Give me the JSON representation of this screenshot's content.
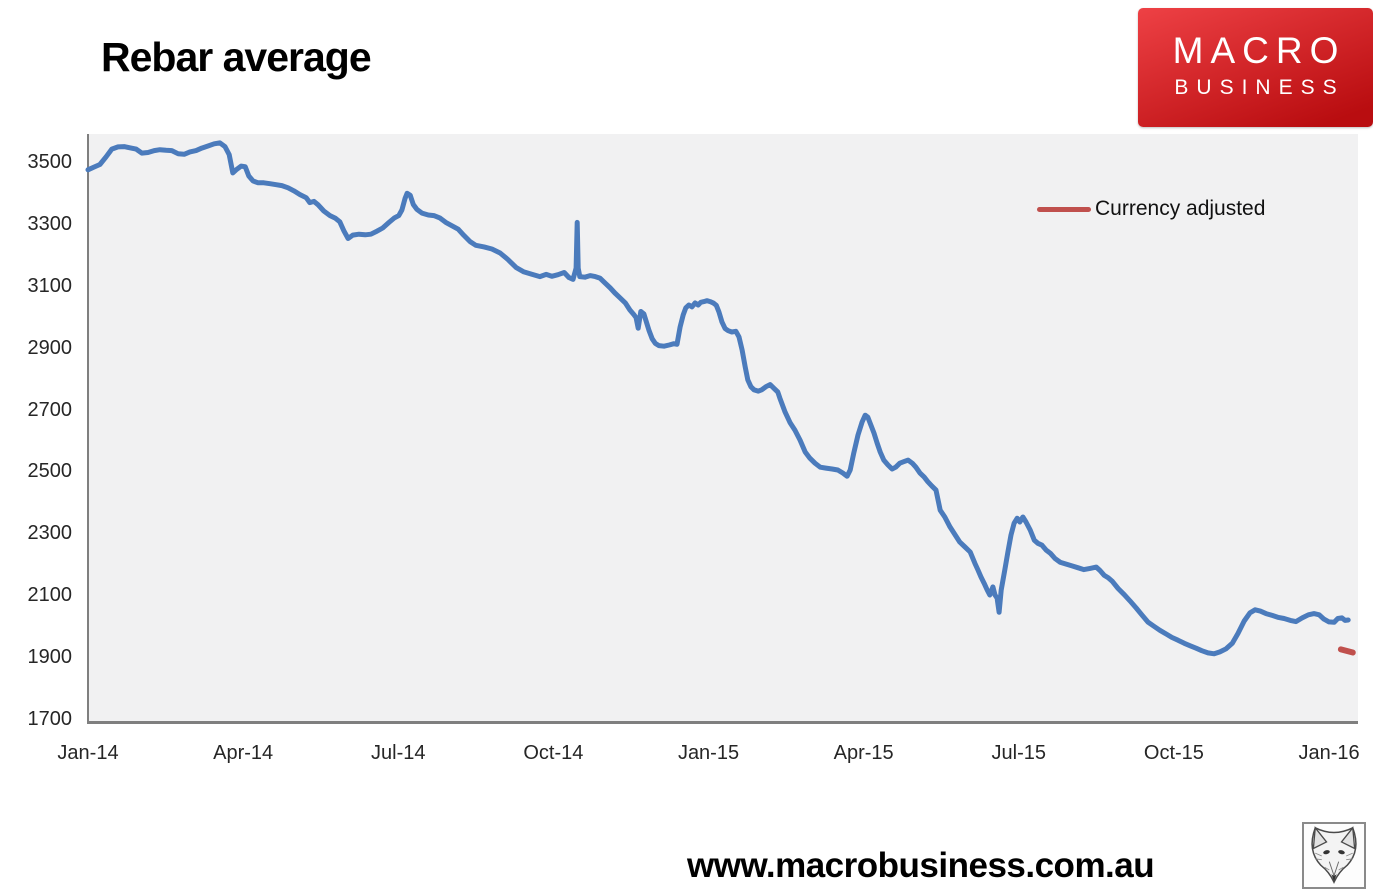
{
  "page": {
    "title": "Rebar average",
    "footer_url": "www.macrobusiness.com.au"
  },
  "logo": {
    "line1": "MACRO",
    "line2": "BUSINESS",
    "bg_top": "#ee4145",
    "bg_bottom": "#b90d10"
  },
  "legend": {
    "label": "Currency adjusted",
    "color": "#c0504d"
  },
  "colors": {
    "series_blue": "#4b7bbc",
    "series_red": "#c0504d",
    "plot_background": "#f1f1f2",
    "axis_line": "#7f7f7f",
    "tick_text": "#262626"
  },
  "chart_data": {
    "type": "line",
    "title": "Rebar average",
    "grid": false,
    "legend_position": "top-right-inside",
    "x_axis": {
      "unit": "months since Jan-2014",
      "tick_labels": [
        "Jan-14",
        "Apr-14",
        "Jul-14",
        "Oct-14",
        "Jan-15",
        "Apr-15",
        "Jul-15",
        "Oct-15",
        "Jan-16"
      ],
      "tick_t": [
        0,
        3,
        6,
        9,
        12,
        15,
        18,
        21,
        24
      ],
      "t_max": 24.56
    },
    "y_axis": {
      "tick_labels": [
        3500,
        3300,
        3100,
        2900,
        2700,
        2500,
        2300,
        2100,
        1900,
        1700
      ],
      "min": 1700,
      "max": 3500
    },
    "series": [
      {
        "name": "",
        "color": "#4b7bbc",
        "width": 5,
        "points": [
          [
            0,
            3478
          ],
          [
            0.12,
            3487
          ],
          [
            0.23,
            3495
          ],
          [
            0.35,
            3520
          ],
          [
            0.46,
            3545
          ],
          [
            0.58,
            3552
          ],
          [
            0.7,
            3553
          ],
          [
            0.81,
            3549
          ],
          [
            0.93,
            3545
          ],
          [
            1.04,
            3532
          ],
          [
            1.16,
            3534
          ],
          [
            1.28,
            3540
          ],
          [
            1.39,
            3543
          ],
          [
            1.51,
            3541
          ],
          [
            1.62,
            3540
          ],
          [
            1.74,
            3530
          ],
          [
            1.86,
            3528
          ],
          [
            1.97,
            3536
          ],
          [
            2.09,
            3540
          ],
          [
            2.2,
            3548
          ],
          [
            2.32,
            3555
          ],
          [
            2.44,
            3562
          ],
          [
            2.55,
            3565
          ],
          [
            2.65,
            3553
          ],
          [
            2.73,
            3527
          ],
          [
            2.8,
            3468
          ],
          [
            2.88,
            3480
          ],
          [
            2.96,
            3490
          ],
          [
            3.04,
            3488
          ],
          [
            3.11,
            3458
          ],
          [
            3.19,
            3442
          ],
          [
            3.29,
            3436
          ],
          [
            3.4,
            3436
          ],
          [
            3.52,
            3433
          ],
          [
            3.64,
            3430
          ],
          [
            3.75,
            3427
          ],
          [
            3.87,
            3420
          ],
          [
            3.98,
            3410
          ],
          [
            4.1,
            3398
          ],
          [
            4.22,
            3388
          ],
          [
            4.29,
            3372
          ],
          [
            4.37,
            3376
          ],
          [
            4.45,
            3365
          ],
          [
            4.56,
            3345
          ],
          [
            4.68,
            3330
          ],
          [
            4.78,
            3322
          ],
          [
            4.87,
            3310
          ],
          [
            4.95,
            3280
          ],
          [
            5.03,
            3256
          ],
          [
            5.12,
            3267
          ],
          [
            5.24,
            3270
          ],
          [
            5.36,
            3268
          ],
          [
            5.47,
            3270
          ],
          [
            5.59,
            3280
          ],
          [
            5.7,
            3290
          ],
          [
            5.82,
            3308
          ],
          [
            5.92,
            3322
          ],
          [
            6.01,
            3330
          ],
          [
            6.07,
            3348
          ],
          [
            6.13,
            3385
          ],
          [
            6.17,
            3402
          ],
          [
            6.23,
            3396
          ],
          [
            6.29,
            3366
          ],
          [
            6.36,
            3350
          ],
          [
            6.46,
            3338
          ],
          [
            6.58,
            3332
          ],
          [
            6.69,
            3330
          ],
          [
            6.81,
            3322
          ],
          [
            6.92,
            3308
          ],
          [
            7.04,
            3297
          ],
          [
            7.16,
            3286
          ],
          [
            7.27,
            3266
          ],
          [
            7.39,
            3246
          ],
          [
            7.5,
            3234
          ],
          [
            7.66,
            3229
          ],
          [
            7.81,
            3222
          ],
          [
            7.97,
            3209
          ],
          [
            8.12,
            3188
          ],
          [
            8.28,
            3162
          ],
          [
            8.43,
            3148
          ],
          [
            8.59,
            3140
          ],
          [
            8.74,
            3133
          ],
          [
            8.86,
            3140
          ],
          [
            8.97,
            3134
          ],
          [
            9.09,
            3139
          ],
          [
            9.21,
            3146
          ],
          [
            9.3,
            3130
          ],
          [
            9.38,
            3124
          ],
          [
            9.44,
            3160
          ],
          [
            9.46,
            3308
          ],
          [
            9.48,
            3160
          ],
          [
            9.51,
            3133
          ],
          [
            9.61,
            3131
          ],
          [
            9.71,
            3136
          ],
          [
            9.81,
            3133
          ],
          [
            9.9,
            3128
          ],
          [
            10,
            3112
          ],
          [
            10.1,
            3096
          ],
          [
            10.19,
            3080
          ],
          [
            10.29,
            3064
          ],
          [
            10.39,
            3048
          ],
          [
            10.48,
            3025
          ],
          [
            10.56,
            3009
          ],
          [
            10.6,
            3000
          ],
          [
            10.64,
            2966
          ],
          [
            10.69,
            3020
          ],
          [
            10.75,
            3012
          ],
          [
            10.79,
            2990
          ],
          [
            10.85,
            2958
          ],
          [
            10.91,
            2932
          ],
          [
            10.97,
            2917
          ],
          [
            11.04,
            2910
          ],
          [
            11.14,
            2908
          ],
          [
            11.24,
            2912
          ],
          [
            11.33,
            2916
          ],
          [
            11.39,
            2914
          ],
          [
            11.45,
            2970
          ],
          [
            11.51,
            3009
          ],
          [
            11.56,
            3032
          ],
          [
            11.62,
            3041
          ],
          [
            11.68,
            3035
          ],
          [
            11.74,
            3048
          ],
          [
            11.8,
            3041
          ],
          [
            11.85,
            3050
          ],
          [
            11.91,
            3052
          ],
          [
            11.97,
            3055
          ],
          [
            12.03,
            3052
          ],
          [
            12.09,
            3048
          ],
          [
            12.15,
            3040
          ],
          [
            12.2,
            3019
          ],
          [
            12.26,
            2986
          ],
          [
            12.32,
            2965
          ],
          [
            12.38,
            2958
          ],
          [
            12.45,
            2954
          ],
          [
            12.53,
            2956
          ],
          [
            12.59,
            2938
          ],
          [
            12.65,
            2896
          ],
          [
            12.71,
            2841
          ],
          [
            12.76,
            2799
          ],
          [
            12.82,
            2777
          ],
          [
            12.88,
            2767
          ],
          [
            12.96,
            2763
          ],
          [
            13.03,
            2767
          ],
          [
            13.11,
            2777
          ],
          [
            13.19,
            2784
          ],
          [
            13.27,
            2771
          ],
          [
            13.34,
            2760
          ],
          [
            13.38,
            2740
          ],
          [
            13.48,
            2695
          ],
          [
            13.58,
            2660
          ],
          [
            13.67,
            2637
          ],
          [
            13.77,
            2605
          ],
          [
            13.87,
            2566
          ],
          [
            13.96,
            2546
          ],
          [
            14.06,
            2530
          ],
          [
            14.16,
            2517
          ],
          [
            14.27,
            2514
          ],
          [
            14.39,
            2511
          ],
          [
            14.5,
            2508
          ],
          [
            14.6,
            2498
          ],
          [
            14.68,
            2488
          ],
          [
            14.74,
            2508
          ],
          [
            14.81,
            2563
          ],
          [
            14.89,
            2621
          ],
          [
            14.97,
            2663
          ],
          [
            15.03,
            2685
          ],
          [
            15.08,
            2679
          ],
          [
            15.14,
            2653
          ],
          [
            15.2,
            2627
          ],
          [
            15.26,
            2595
          ],
          [
            15.32,
            2566
          ],
          [
            15.39,
            2540
          ],
          [
            15.47,
            2524
          ],
          [
            15.55,
            2511
          ],
          [
            15.62,
            2517
          ],
          [
            15.7,
            2530
          ],
          [
            15.78,
            2535
          ],
          [
            15.86,
            2540
          ],
          [
            15.94,
            2530
          ],
          [
            16.01,
            2517
          ],
          [
            16.09,
            2498
          ],
          [
            16.17,
            2485
          ],
          [
            16.24,
            2470
          ],
          [
            16.32,
            2456
          ],
          [
            16.4,
            2443
          ],
          [
            16.48,
            2378
          ],
          [
            16.57,
            2356
          ],
          [
            16.67,
            2324
          ],
          [
            16.77,
            2298
          ],
          [
            16.86,
            2275
          ],
          [
            16.96,
            2259
          ],
          [
            17.06,
            2243
          ],
          [
            17.15,
            2207
          ],
          [
            17.21,
            2185
          ],
          [
            17.27,
            2162
          ],
          [
            17.33,
            2142
          ],
          [
            17.39,
            2120
          ],
          [
            17.44,
            2104
          ],
          [
            17.5,
            2130
          ],
          [
            17.54,
            2104
          ],
          [
            17.58,
            2094
          ],
          [
            17.62,
            2048
          ],
          [
            17.66,
            2120
          ],
          [
            17.73,
            2185
          ],
          [
            17.79,
            2243
          ],
          [
            17.85,
            2298
          ],
          [
            17.91,
            2336
          ],
          [
            17.97,
            2352
          ],
          [
            18.02,
            2340
          ],
          [
            18.08,
            2356
          ],
          [
            18.14,
            2340
          ],
          [
            18.22,
            2314
          ],
          [
            18.3,
            2281
          ],
          [
            18.37,
            2271
          ],
          [
            18.45,
            2265
          ],
          [
            18.53,
            2249
          ],
          [
            18.61,
            2239
          ],
          [
            18.7,
            2222
          ],
          [
            18.8,
            2210
          ],
          [
            18.91,
            2204
          ],
          [
            19.03,
            2198
          ],
          [
            19.15,
            2192
          ],
          [
            19.26,
            2186
          ],
          [
            19.38,
            2190
          ],
          [
            19.5,
            2194
          ],
          [
            19.57,
            2183
          ],
          [
            19.65,
            2168
          ],
          [
            19.73,
            2160
          ],
          [
            19.81,
            2148
          ],
          [
            19.92,
            2125
          ],
          [
            20.04,
            2105
          ],
          [
            20.15,
            2085
          ],
          [
            20.27,
            2062
          ],
          [
            20.38,
            2040
          ],
          [
            20.5,
            2016
          ],
          [
            20.62,
            2002
          ],
          [
            20.73,
            1990
          ],
          [
            20.85,
            1978
          ],
          [
            20.96,
            1967
          ],
          [
            21.08,
            1958
          ],
          [
            21.2,
            1948
          ],
          [
            21.31,
            1940
          ],
          [
            21.43,
            1932
          ],
          [
            21.54,
            1924
          ],
          [
            21.66,
            1917
          ],
          [
            21.78,
            1914
          ],
          [
            21.89,
            1920
          ],
          [
            22.01,
            1930
          ],
          [
            22.13,
            1948
          ],
          [
            22.24,
            1980
          ],
          [
            22.36,
            2020
          ],
          [
            22.47,
            2046
          ],
          [
            22.57,
            2056
          ],
          [
            22.67,
            2052
          ],
          [
            22.78,
            2044
          ],
          [
            22.9,
            2038
          ],
          [
            23.01,
            2032
          ],
          [
            23.13,
            2028
          ],
          [
            23.25,
            2022
          ],
          [
            23.36,
            2018
          ],
          [
            23.48,
            2030
          ],
          [
            23.6,
            2040
          ],
          [
            23.71,
            2044
          ],
          [
            23.81,
            2040
          ],
          [
            23.9,
            2026
          ],
          [
            24,
            2017
          ],
          [
            24.1,
            2016
          ],
          [
            24.17,
            2028
          ],
          [
            24.25,
            2030
          ],
          [
            24.31,
            2022
          ],
          [
            24.37,
            2023
          ]
        ]
      },
      {
        "name": "Currency adjusted",
        "color": "#c0504d",
        "width": 6,
        "points": [
          [
            24.23,
            1928
          ],
          [
            24.46,
            1918
          ]
        ]
      }
    ]
  }
}
